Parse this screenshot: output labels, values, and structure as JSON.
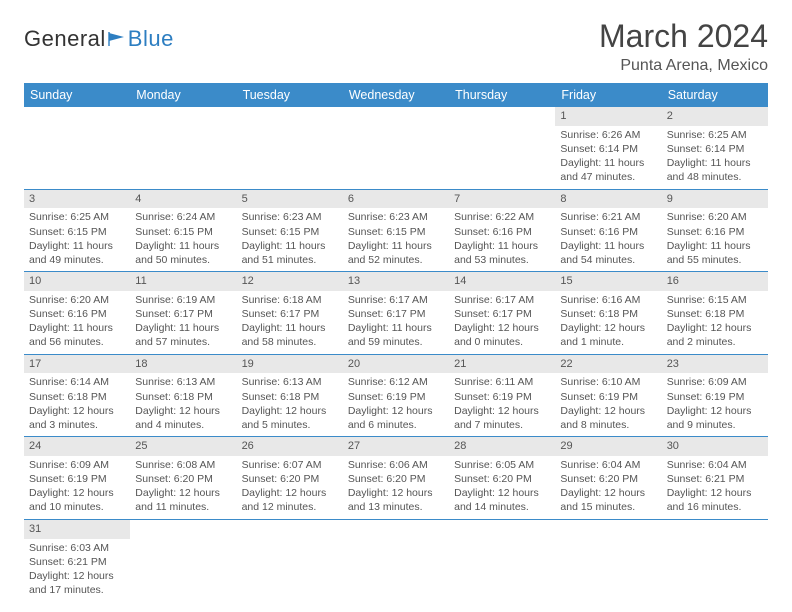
{
  "logo": {
    "text1": "General",
    "text2": "Blue"
  },
  "title": "March 2024",
  "location": "Punta Arena, Mexico",
  "colors": {
    "header_bg": "#3b8bc9",
    "header_fg": "#ffffff",
    "daynum_bg": "#e8e8e8",
    "row_border": "#3b8bc9",
    "body_text": "#555555",
    "logo_blue": "#2d7ec1"
  },
  "weekdays": [
    "Sunday",
    "Monday",
    "Tuesday",
    "Wednesday",
    "Thursday",
    "Friday",
    "Saturday"
  ],
  "weeks": [
    [
      null,
      null,
      null,
      null,
      null,
      {
        "n": "1",
        "sr": "Sunrise: 6:26 AM",
        "ss": "Sunset: 6:14 PM",
        "dl1": "Daylight: 11 hours",
        "dl2": "and 47 minutes."
      },
      {
        "n": "2",
        "sr": "Sunrise: 6:25 AM",
        "ss": "Sunset: 6:14 PM",
        "dl1": "Daylight: 11 hours",
        "dl2": "and 48 minutes."
      }
    ],
    [
      {
        "n": "3",
        "sr": "Sunrise: 6:25 AM",
        "ss": "Sunset: 6:15 PM",
        "dl1": "Daylight: 11 hours",
        "dl2": "and 49 minutes."
      },
      {
        "n": "4",
        "sr": "Sunrise: 6:24 AM",
        "ss": "Sunset: 6:15 PM",
        "dl1": "Daylight: 11 hours",
        "dl2": "and 50 minutes."
      },
      {
        "n": "5",
        "sr": "Sunrise: 6:23 AM",
        "ss": "Sunset: 6:15 PM",
        "dl1": "Daylight: 11 hours",
        "dl2": "and 51 minutes."
      },
      {
        "n": "6",
        "sr": "Sunrise: 6:23 AM",
        "ss": "Sunset: 6:15 PM",
        "dl1": "Daylight: 11 hours",
        "dl2": "and 52 minutes."
      },
      {
        "n": "7",
        "sr": "Sunrise: 6:22 AM",
        "ss": "Sunset: 6:16 PM",
        "dl1": "Daylight: 11 hours",
        "dl2": "and 53 minutes."
      },
      {
        "n": "8",
        "sr": "Sunrise: 6:21 AM",
        "ss": "Sunset: 6:16 PM",
        "dl1": "Daylight: 11 hours",
        "dl2": "and 54 minutes."
      },
      {
        "n": "9",
        "sr": "Sunrise: 6:20 AM",
        "ss": "Sunset: 6:16 PM",
        "dl1": "Daylight: 11 hours",
        "dl2": "and 55 minutes."
      }
    ],
    [
      {
        "n": "10",
        "sr": "Sunrise: 6:20 AM",
        "ss": "Sunset: 6:16 PM",
        "dl1": "Daylight: 11 hours",
        "dl2": "and 56 minutes."
      },
      {
        "n": "11",
        "sr": "Sunrise: 6:19 AM",
        "ss": "Sunset: 6:17 PM",
        "dl1": "Daylight: 11 hours",
        "dl2": "and 57 minutes."
      },
      {
        "n": "12",
        "sr": "Sunrise: 6:18 AM",
        "ss": "Sunset: 6:17 PM",
        "dl1": "Daylight: 11 hours",
        "dl2": "and 58 minutes."
      },
      {
        "n": "13",
        "sr": "Sunrise: 6:17 AM",
        "ss": "Sunset: 6:17 PM",
        "dl1": "Daylight: 11 hours",
        "dl2": "and 59 minutes."
      },
      {
        "n": "14",
        "sr": "Sunrise: 6:17 AM",
        "ss": "Sunset: 6:17 PM",
        "dl1": "Daylight: 12 hours",
        "dl2": "and 0 minutes."
      },
      {
        "n": "15",
        "sr": "Sunrise: 6:16 AM",
        "ss": "Sunset: 6:18 PM",
        "dl1": "Daylight: 12 hours",
        "dl2": "and 1 minute."
      },
      {
        "n": "16",
        "sr": "Sunrise: 6:15 AM",
        "ss": "Sunset: 6:18 PM",
        "dl1": "Daylight: 12 hours",
        "dl2": "and 2 minutes."
      }
    ],
    [
      {
        "n": "17",
        "sr": "Sunrise: 6:14 AM",
        "ss": "Sunset: 6:18 PM",
        "dl1": "Daylight: 12 hours",
        "dl2": "and 3 minutes."
      },
      {
        "n": "18",
        "sr": "Sunrise: 6:13 AM",
        "ss": "Sunset: 6:18 PM",
        "dl1": "Daylight: 12 hours",
        "dl2": "and 4 minutes."
      },
      {
        "n": "19",
        "sr": "Sunrise: 6:13 AM",
        "ss": "Sunset: 6:18 PM",
        "dl1": "Daylight: 12 hours",
        "dl2": "and 5 minutes."
      },
      {
        "n": "20",
        "sr": "Sunrise: 6:12 AM",
        "ss": "Sunset: 6:19 PM",
        "dl1": "Daylight: 12 hours",
        "dl2": "and 6 minutes."
      },
      {
        "n": "21",
        "sr": "Sunrise: 6:11 AM",
        "ss": "Sunset: 6:19 PM",
        "dl1": "Daylight: 12 hours",
        "dl2": "and 7 minutes."
      },
      {
        "n": "22",
        "sr": "Sunrise: 6:10 AM",
        "ss": "Sunset: 6:19 PM",
        "dl1": "Daylight: 12 hours",
        "dl2": "and 8 minutes."
      },
      {
        "n": "23",
        "sr": "Sunrise: 6:09 AM",
        "ss": "Sunset: 6:19 PM",
        "dl1": "Daylight: 12 hours",
        "dl2": "and 9 minutes."
      }
    ],
    [
      {
        "n": "24",
        "sr": "Sunrise: 6:09 AM",
        "ss": "Sunset: 6:19 PM",
        "dl1": "Daylight: 12 hours",
        "dl2": "and 10 minutes."
      },
      {
        "n": "25",
        "sr": "Sunrise: 6:08 AM",
        "ss": "Sunset: 6:20 PM",
        "dl1": "Daylight: 12 hours",
        "dl2": "and 11 minutes."
      },
      {
        "n": "26",
        "sr": "Sunrise: 6:07 AM",
        "ss": "Sunset: 6:20 PM",
        "dl1": "Daylight: 12 hours",
        "dl2": "and 12 minutes."
      },
      {
        "n": "27",
        "sr": "Sunrise: 6:06 AM",
        "ss": "Sunset: 6:20 PM",
        "dl1": "Daylight: 12 hours",
        "dl2": "and 13 minutes."
      },
      {
        "n": "28",
        "sr": "Sunrise: 6:05 AM",
        "ss": "Sunset: 6:20 PM",
        "dl1": "Daylight: 12 hours",
        "dl2": "and 14 minutes."
      },
      {
        "n": "29",
        "sr": "Sunrise: 6:04 AM",
        "ss": "Sunset: 6:20 PM",
        "dl1": "Daylight: 12 hours",
        "dl2": "and 15 minutes."
      },
      {
        "n": "30",
        "sr": "Sunrise: 6:04 AM",
        "ss": "Sunset: 6:21 PM",
        "dl1": "Daylight: 12 hours",
        "dl2": "and 16 minutes."
      }
    ],
    [
      {
        "n": "31",
        "sr": "Sunrise: 6:03 AM",
        "ss": "Sunset: 6:21 PM",
        "dl1": "Daylight: 12 hours",
        "dl2": "and 17 minutes."
      },
      null,
      null,
      null,
      null,
      null,
      null
    ]
  ]
}
